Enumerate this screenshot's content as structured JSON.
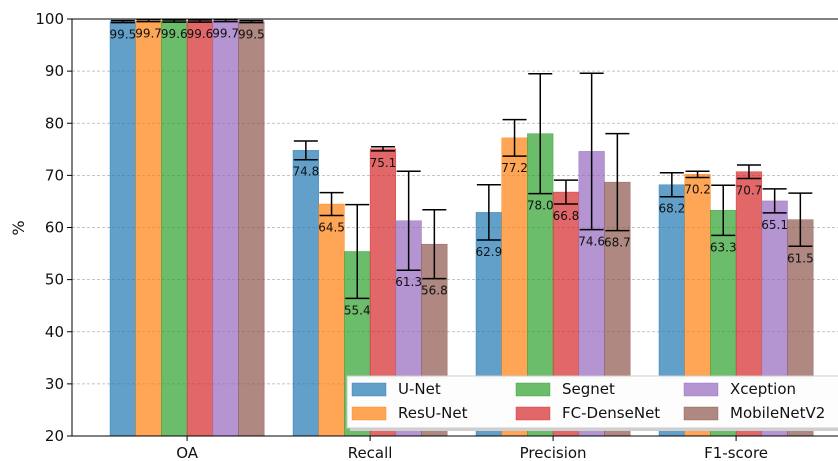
{
  "chart_data": {
    "type": "bar",
    "title": "",
    "xlabel": "",
    "ylabel": "%",
    "ylim": [
      20,
      100
    ],
    "yticks": [
      20,
      30,
      40,
      50,
      60,
      70,
      80,
      90,
      100
    ],
    "grid": "horizontal dashed",
    "legend_position": "bottom-right",
    "categories": [
      "OA",
      "Recall",
      "Precision",
      "F1-score"
    ],
    "series": [
      {
        "name": "U-Net",
        "color": "#1f77b4",
        "values": [
          99.5,
          74.8,
          62.9,
          68.2
        ],
        "err_low": [
          0.2,
          1.8,
          5.3,
          2.3
        ],
        "err_high": [
          0.2,
          1.8,
          5.3,
          2.3
        ]
      },
      {
        "name": "ResU-Net",
        "color": "#ff7f0e",
        "values": [
          99.7,
          64.5,
          77.2,
          70.2
        ],
        "err_low": [
          0.2,
          2.2,
          3.5,
          0.6
        ],
        "err_high": [
          0.2,
          2.2,
          3.5,
          0.6
        ]
      },
      {
        "name": "Segnet",
        "color": "#2ca02c",
        "values": [
          99.6,
          55.4,
          78.0,
          63.3
        ],
        "err_low": [
          0.2,
          9.0,
          11.5,
          4.8
        ],
        "err_high": [
          0.2,
          9.0,
          11.5,
          4.8
        ]
      },
      {
        "name": "FC-DenseNet",
        "color": "#d62728",
        "values": [
          99.6,
          75.1,
          66.8,
          70.7
        ],
        "err_low": [
          0.2,
          0.4,
          2.3,
          1.3
        ],
        "err_high": [
          0.2,
          0.4,
          2.3,
          1.3
        ]
      },
      {
        "name": "Xception",
        "color": "#9467bd",
        "values": [
          99.7,
          61.3,
          74.6,
          65.1
        ],
        "err_low": [
          0.2,
          9.5,
          15.0,
          2.3
        ],
        "err_high": [
          0.2,
          9.5,
          15.0,
          2.3
        ]
      },
      {
        "name": "MobileNetV2",
        "color": "#8c564b",
        "values": [
          99.5,
          56.8,
          68.7,
          61.5
        ],
        "err_low": [
          0.2,
          6.6,
          9.3,
          5.1
        ],
        "err_high": [
          0.2,
          6.6,
          9.3,
          5.1
        ]
      }
    ]
  }
}
